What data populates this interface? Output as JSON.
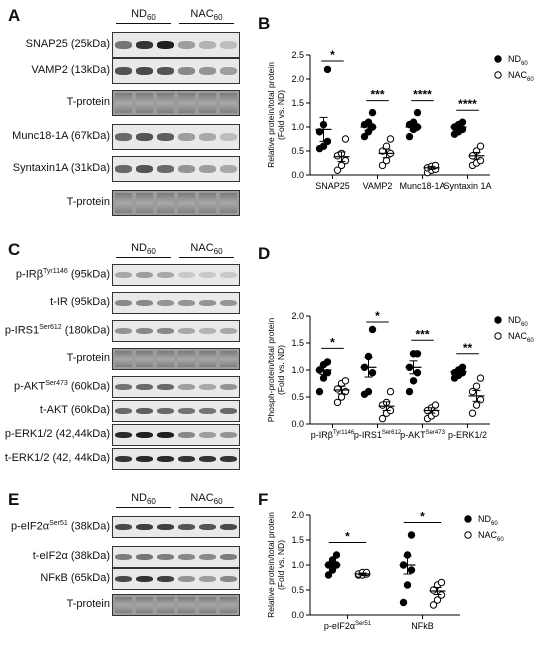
{
  "panels": {
    "A": {
      "letter": "A",
      "groups": [
        {
          "name": "ND",
          "sub": "60"
        },
        {
          "name": "NAC",
          "sub": "60"
        }
      ],
      "rows": [
        {
          "label": "SNAP25 (25kDa)",
          "kind": "band",
          "intensity": [
            0.55,
            0.85,
            0.95,
            0.35,
            0.25,
            0.2
          ]
        },
        {
          "label": "VAMP2 (13kDa)",
          "kind": "band",
          "intensity": [
            0.7,
            0.75,
            0.7,
            0.45,
            0.4,
            0.35
          ]
        },
        {
          "label": "T-protein",
          "kind": "tprot"
        },
        {
          "label": "Munc18-1A (67kDa)",
          "kind": "band",
          "intensity": [
            0.6,
            0.7,
            0.65,
            0.35,
            0.3,
            0.2
          ]
        },
        {
          "label": "Syntaxin1A (31kDa)",
          "kind": "band",
          "intensity": [
            0.6,
            0.7,
            0.6,
            0.4,
            0.35,
            0.3
          ]
        },
        {
          "label": "T-protein",
          "kind": "tprot"
        }
      ]
    },
    "C": {
      "letter": "C",
      "groups": [
        {
          "name": "ND",
          "sub": "60"
        },
        {
          "name": "NAC",
          "sub": "60"
        }
      ],
      "rows": [
        {
          "label": "p-IRβ",
          "sup": "Tyr1146",
          "after": " (95kDa)",
          "kind": "band",
          "intensity": [
            0.3,
            0.35,
            0.3,
            0.15,
            0.15,
            0.15
          ]
        },
        {
          "label": "t-IR (95kDa)",
          "kind": "band",
          "intensity": [
            0.45,
            0.45,
            0.4,
            0.4,
            0.4,
            0.4
          ]
        },
        {
          "label": "p-IRS1",
          "sup": "Ser612",
          "after": " (180kDa)",
          "kind": "band",
          "intensity": [
            0.4,
            0.45,
            0.45,
            0.3,
            0.25,
            0.3
          ]
        },
        {
          "label": "T-protein",
          "kind": "tprot"
        },
        {
          "label": "p-AKT",
          "sup": "Ser473",
          "after": " (60kDa)",
          "kind": "band",
          "intensity": [
            0.55,
            0.6,
            0.6,
            0.35,
            0.3,
            0.4
          ]
        },
        {
          "label": "t-AKT (60kDa)",
          "kind": "band",
          "intensity": [
            0.6,
            0.65,
            0.6,
            0.55,
            0.55,
            0.6
          ]
        },
        {
          "label": "p-ERK1/2 (42,44kDa)",
          "kind": "band",
          "intensity": [
            0.9,
            0.95,
            0.95,
            0.45,
            0.35,
            0.4
          ]
        },
        {
          "label": "t-ERK1/2 (42, 44kDa)",
          "kind": "band",
          "intensity": [
            0.85,
            0.9,
            0.9,
            0.85,
            0.85,
            0.85
          ]
        }
      ]
    },
    "E": {
      "letter": "E",
      "groups": [
        {
          "name": "ND",
          "sub": "60"
        },
        {
          "name": "NAC",
          "sub": "60"
        }
      ],
      "rows": [
        {
          "label": "p-eIF2α",
          "sup": "Ser51",
          "after": " (38kDa)",
          "kind": "band",
          "intensity": [
            0.75,
            0.8,
            0.8,
            0.7,
            0.7,
            0.75
          ]
        },
        {
          "label": "t-eIF2α (38kDa)",
          "kind": "band",
          "intensity": [
            0.5,
            0.55,
            0.5,
            0.45,
            0.45,
            0.5
          ]
        },
        {
          "label": "NFκB (65kDa)",
          "kind": "band",
          "intensity": [
            0.75,
            0.85,
            0.8,
            0.4,
            0.35,
            0.45
          ]
        },
        {
          "label": "T-protein",
          "kind": "tprot"
        }
      ]
    }
  },
  "chart_data": [
    {
      "panel": "B",
      "type": "scatter",
      "ylabel": "Relative protein/total protein",
      "ylabel2": "(Fold vs. ND)",
      "ylim": [
        0,
        2.5
      ],
      "yticks": [
        0.0,
        0.5,
        1.0,
        1.5,
        2.0,
        2.5
      ],
      "ytick_labels": [
        "0.0",
        "0.5",
        "1.0",
        "1.5",
        "2.0",
        "2.5"
      ],
      "categories": [
        "SNAP25",
        "VAMP2",
        "Munc18-1A",
        "Syntaxin 1A"
      ],
      "cat_subs": [
        null,
        null,
        null,
        null
      ],
      "series": [
        {
          "name": "ND",
          "sub": "60",
          "marker": "filled",
          "values": [
            [
              0.55,
              0.6,
              0.7,
              0.9,
              1.05,
              2.2
            ],
            [
              0.8,
              0.9,
              1.0,
              1.05,
              1.1,
              1.3
            ],
            [
              0.8,
              0.95,
              1.0,
              1.05,
              1.1,
              1.3
            ],
            [
              0.85,
              0.9,
              0.95,
              1.0,
              1.05,
              1.1
            ]
          ],
          "mean": [
            0.95,
            1.0,
            1.0,
            1.0
          ],
          "sem": [
            0.25,
            0.08,
            0.08,
            0.05
          ]
        },
        {
          "name": "NAC",
          "sub": "60",
          "marker": "open",
          "values": [
            [
              0.1,
              0.2,
              0.3,
              0.4,
              0.45,
              0.75
            ],
            [
              0.2,
              0.3,
              0.45,
              0.5,
              0.6,
              0.75
            ],
            [
              0.05,
              0.1,
              0.12,
              0.15,
              0.18,
              0.2
            ],
            [
              0.2,
              0.25,
              0.3,
              0.4,
              0.5,
              0.6
            ]
          ],
          "mean": [
            0.38,
            0.45,
            0.15,
            0.4
          ],
          "sem": [
            0.1,
            0.09,
            0.03,
            0.07
          ]
        }
      ],
      "significance": [
        "*",
        "***",
        "****",
        "****"
      ],
      "legend_placement": "top-right"
    },
    {
      "panel": "D",
      "type": "scatter",
      "ylabel": "Phosph-protein/total protein",
      "ylabel2": "(Fold vs. ND)",
      "ylim": [
        0,
        2.0
      ],
      "yticks": [
        0.0,
        0.5,
        1.0,
        1.5,
        2.0
      ],
      "ytick_labels": [
        "0.0",
        "0.5",
        "1.0",
        "1.5",
        "2.0"
      ],
      "categories": [
        "p-IRβ",
        "p-IRS1",
        "p-AKT",
        "p-ERK1/2"
      ],
      "cat_subs": [
        "Tyr1146",
        "Ser612",
        "Ser473",
        null
      ],
      "series": [
        {
          "name": "ND",
          "sub": "60",
          "marker": "filled",
          "values": [
            [
              0.6,
              0.85,
              0.95,
              1.0,
              1.1,
              1.15
            ],
            [
              0.55,
              0.6,
              0.95,
              1.05,
              1.25,
              1.75
            ],
            [
              0.6,
              0.8,
              0.95,
              1.05,
              1.3,
              1.3
            ],
            [
              0.85,
              0.9,
              0.95,
              0.95,
              1.0,
              1.05
            ]
          ],
          "mean": [
            1.0,
            1.05,
            1.05,
            0.97
          ],
          "sem": [
            0.08,
            0.18,
            0.12,
            0.03
          ]
        },
        {
          "name": "NAC",
          "sub": "60",
          "marker": "open",
          "values": [
            [
              0.4,
              0.5,
              0.6,
              0.65,
              0.75,
              0.8
            ],
            [
              0.1,
              0.2,
              0.25,
              0.35,
              0.4,
              0.6
            ],
            [
              0.1,
              0.15,
              0.2,
              0.25,
              0.3,
              0.35
            ],
            [
              0.2,
              0.35,
              0.45,
              0.6,
              0.7,
              0.85
            ]
          ],
          "mean": [
            0.63,
            0.33,
            0.25,
            0.52
          ],
          "sem": [
            0.07,
            0.08,
            0.05,
            0.1
          ]
        }
      ],
      "significance": [
        "*",
        "*",
        "***",
        "**"
      ],
      "legend_placement": "top-right"
    },
    {
      "panel": "F",
      "type": "scatter",
      "ylabel": "Relative protein/total protein",
      "ylabel2": "(Fold vs. ND)",
      "ylim": [
        0,
        2.0
      ],
      "yticks": [
        0.0,
        0.5,
        1.0,
        1.5,
        2.0
      ],
      "ytick_labels": [
        "0.0",
        "0.5",
        "1.0",
        "1.5",
        "2.0"
      ],
      "categories": [
        "p-eIF2α",
        "NFkB"
      ],
      "cat_subs": [
        "Ser51",
        null
      ],
      "series": [
        {
          "name": "ND",
          "sub": "60",
          "marker": "filled",
          "values": [
            [
              0.8,
              0.9,
              1.0,
              1.0,
              1.1,
              1.2
            ],
            [
              0.25,
              0.6,
              0.9,
              1.0,
              1.2,
              1.6
            ]
          ],
          "mean": [
            1.0,
            1.0
          ],
          "sem": [
            0.06,
            0.18
          ]
        },
        {
          "name": "NAC",
          "sub": "60",
          "marker": "open",
          "values": [
            [
              0.8,
              0.8,
              0.82,
              0.82,
              0.85,
              0.85
            ],
            [
              0.2,
              0.3,
              0.4,
              0.5,
              0.6,
              0.65
            ]
          ],
          "mean": [
            0.82,
            0.48
          ],
          "sem": [
            0.02,
            0.07
          ]
        }
      ],
      "significance": [
        "*",
        "*"
      ],
      "legend_placement": "top-right"
    }
  ]
}
